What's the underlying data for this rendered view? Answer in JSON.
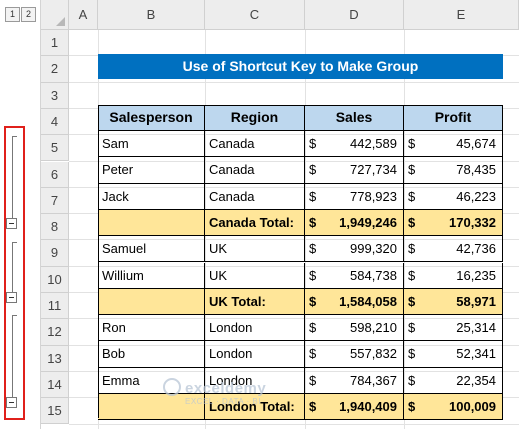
{
  "outline": {
    "levels": [
      "1",
      "2"
    ]
  },
  "columns": [
    "A",
    "B",
    "C",
    "D",
    "E"
  ],
  "rows": [
    "1",
    "2",
    "3",
    "4",
    "5",
    "6",
    "7",
    "8",
    "9",
    "10",
    "11",
    "12",
    "13",
    "14",
    "15"
  ],
  "title": "Use of Shortcut Key to Make Group",
  "table": {
    "headers": [
      "Salesperson",
      "Region",
      "Sales",
      "Profit"
    ],
    "currency": "$",
    "rows": [
      {
        "name": "Sam",
        "region": "Canada",
        "sales": "442,589",
        "profit": "45,674",
        "total": false
      },
      {
        "name": "Peter",
        "region": "Canada",
        "sales": "727,734",
        "profit": "78,435",
        "total": false
      },
      {
        "name": "Jack",
        "region": "Canada",
        "sales": "778,923",
        "profit": "46,223",
        "total": false
      },
      {
        "name": "",
        "region": "Canada Total:",
        "sales": "1,949,246",
        "profit": "170,332",
        "total": true
      },
      {
        "name": "Samuel",
        "region": "UK",
        "sales": "999,320",
        "profit": "42,736",
        "total": false
      },
      {
        "name": "Willium",
        "region": "UK",
        "sales": "584,738",
        "profit": "16,235",
        "total": false
      },
      {
        "name": "",
        "region": "UK Total:",
        "sales": "1,584,058",
        "profit": "58,971",
        "total": true
      },
      {
        "name": "Ron",
        "region": "London",
        "sales": "598,210",
        "profit": "25,314",
        "total": false
      },
      {
        "name": "Bob",
        "region": "London",
        "sales": "557,832",
        "profit": "52,341",
        "total": false
      },
      {
        "name": "Emma",
        "region": "London",
        "sales": "784,367",
        "profit": "22,354",
        "total": false
      },
      {
        "name": "",
        "region": "London Total:",
        "sales": "1,940,409",
        "profit": "100,009",
        "total": true
      }
    ]
  },
  "watermark": {
    "brand": "exceldemy",
    "tagline": "EXCEL · DATA · BI"
  },
  "colors": {
    "title_bg": "#0070c0",
    "header_bg": "#bdd7ee",
    "total_bg": "#ffe699",
    "highlight": "#e0201b"
  }
}
